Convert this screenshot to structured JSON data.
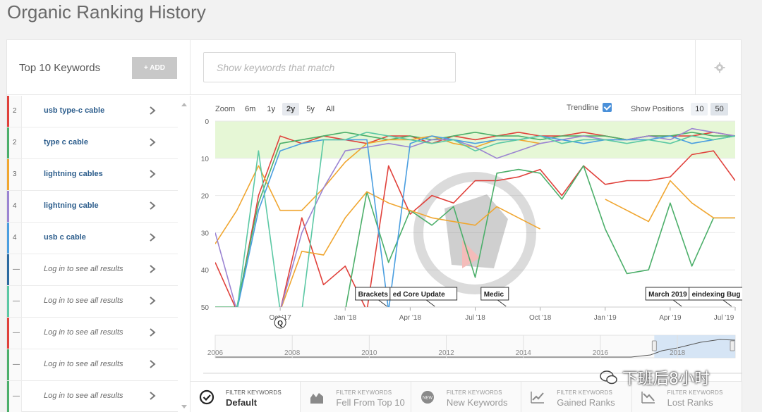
{
  "page": {
    "title": "Organic Ranking History"
  },
  "left_panel": {
    "title": "Top 10 Keywords",
    "add_label": "+ ADD"
  },
  "search": {
    "placeholder": "Show keywords that match"
  },
  "keywords": [
    {
      "rank": "2",
      "label": "usb type-c cable",
      "color": "#e0413b",
      "locked": false
    },
    {
      "rank": "2",
      "label": "type c cable",
      "color": "#4caf6a",
      "locked": false
    },
    {
      "rank": "3",
      "label": "lightning cables",
      "color": "#f0a630",
      "locked": false
    },
    {
      "rank": "4",
      "label": "lightning cable",
      "color": "#9b84d2",
      "locked": false
    },
    {
      "rank": "4",
      "label": "usb c cable",
      "color": "#4a9ee0",
      "locked": false
    },
    {
      "rank": "—",
      "label": "Log in to see all results",
      "color": "#2b6aa0",
      "locked": true
    },
    {
      "rank": "—",
      "label": "Log in to see all results",
      "color": "#5bc8a4",
      "locked": true
    },
    {
      "rank": "—",
      "label": "Log in to see all results",
      "color": "#e0413b",
      "locked": true
    },
    {
      "rank": "—",
      "label": "Log in to see all results",
      "color": "#4caf6a",
      "locked": true
    },
    {
      "rank": "—",
      "label": "Log in to see all results",
      "color": "#4caf6a",
      "locked": true
    }
  ],
  "chart_controls": {
    "zoom_label": "Zoom",
    "zoom_options": [
      "6m",
      "1y",
      "2y",
      "5y",
      "All"
    ],
    "zoom_active": "2y",
    "trendline_label": "Trendline",
    "trendline_checked": true,
    "positions_label": "Show Positions",
    "positions_options": [
      "10",
      "50"
    ],
    "positions_active": "50"
  },
  "chart_data": {
    "type": "line",
    "y_ticks": [
      "0",
      "10",
      "20",
      "30",
      "40",
      "50"
    ],
    "ylim": [
      0,
      50
    ],
    "y_reversed": true,
    "x_ticks": [
      "Oct '17",
      "Jan '18",
      "Apr '18",
      "Jul '18",
      "Oct '18",
      "Jan '19",
      "Apr '19",
      "Jul '19"
    ],
    "x_range": [
      0,
      24
    ],
    "top10_band_color": "#e6f7d6",
    "annotations": [
      {
        "label": "Brackets",
        "x": 6.6
      },
      {
        "label": "ed Core Update",
        "x": 8.2
      },
      {
        "label": "Medic",
        "x": 12.4
      },
      {
        "label": "March 2019",
        "x": 20.0
      },
      {
        "label": "eindexing Bug",
        "x": 22.0
      }
    ],
    "marker_label": "Q",
    "series": [
      {
        "color": "#e0413b",
        "x": [
          0,
          1,
          2,
          3,
          4,
          5,
          6,
          7,
          8,
          9,
          10,
          11,
          12,
          13,
          14,
          15,
          16,
          17,
          18,
          19,
          20,
          21,
          22,
          23,
          24
        ],
        "y": [
          38,
          51,
          20,
          4,
          6,
          4,
          5,
          6,
          4,
          4,
          6,
          4,
          5,
          4,
          3,
          4,
          4,
          3,
          4,
          5,
          4,
          4,
          4,
          3,
          4
        ]
      },
      {
        "color": "#e0413b",
        "x": [
          3,
          4,
          5,
          6,
          7,
          8,
          9,
          10,
          11,
          12,
          13,
          14,
          15,
          16,
          17,
          18,
          19,
          20,
          21,
          22,
          23,
          24
        ],
        "y": [
          51,
          26,
          44,
          39,
          51,
          12,
          25,
          20,
          22,
          16,
          16,
          15,
          13,
          20,
          12,
          17,
          16,
          16,
          15,
          9,
          8,
          16
        ]
      },
      {
        "color": "#4caf6a",
        "x": [
          0,
          1,
          2,
          3,
          4,
          5,
          6,
          7,
          8,
          9,
          10,
          11,
          12,
          13,
          14,
          15,
          16,
          17,
          18,
          19,
          20,
          21,
          22,
          23,
          24
        ],
        "y": [
          50,
          50,
          22,
          6,
          5,
          4,
          3,
          4,
          5,
          4,
          5,
          4,
          3,
          4,
          4,
          5,
          4,
          4,
          4,
          5,
          4,
          4,
          3,
          4,
          4
        ]
      },
      {
        "color": "#4caf6a",
        "x": [
          6,
          7,
          8,
          9,
          10,
          11,
          12,
          13,
          14,
          15,
          16,
          17,
          18,
          19,
          20,
          21,
          22,
          23,
          24
        ],
        "y": [
          51,
          19,
          38,
          24,
          28,
          23,
          42,
          14,
          13,
          14,
          21,
          12,
          29,
          41,
          40,
          22,
          39,
          26,
          26
        ]
      },
      {
        "color": "#f0a630",
        "x": [
          0,
          1,
          2,
          3,
          4,
          5,
          6,
          7,
          8,
          9,
          10,
          11,
          12,
          13,
          14,
          15
        ],
        "y": [
          33,
          24,
          12,
          24,
          24,
          18,
          11,
          6,
          5,
          5,
          4,
          6,
          7,
          5,
          5,
          6
        ]
      },
      {
        "color": "#f0a630",
        "x": [
          3,
          4,
          5,
          6,
          7,
          8,
          9,
          10,
          11,
          12,
          13,
          14,
          15
        ],
        "y": [
          51,
          35,
          36,
          26,
          19,
          22,
          24,
          26,
          27,
          28,
          23,
          26,
          29
        ]
      },
      {
        "color": "#f0a630",
        "x": [
          18,
          19,
          20,
          21,
          22,
          23,
          24
        ],
        "y": [
          21,
          24,
          27,
          16,
          22,
          26,
          26
        ]
      },
      {
        "color": "#9b84d2",
        "x": [
          0,
          1,
          2,
          3,
          4,
          5,
          6,
          7,
          8,
          9,
          10,
          11,
          12,
          13,
          14,
          15,
          16,
          17,
          18,
          19,
          20,
          21,
          22,
          23,
          24
        ],
        "y": [
          30,
          51,
          51,
          51,
          30,
          18,
          8,
          7,
          6,
          7,
          5,
          5,
          7,
          10,
          8,
          6,
          5,
          4,
          5,
          5,
          4,
          5,
          2,
          3,
          4
        ]
      },
      {
        "color": "#4a9ee0",
        "x": [
          0,
          1,
          2,
          3,
          4,
          5,
          6,
          7,
          8,
          9,
          10,
          11,
          12,
          13,
          14,
          15,
          16,
          17,
          18,
          19,
          20,
          21,
          22,
          23,
          24
        ],
        "y": [
          51,
          51,
          24,
          8,
          6,
          5,
          5,
          5,
          51,
          6,
          4,
          5,
          6,
          5,
          5,
          4,
          5,
          6,
          5,
          5,
          5,
          4,
          6,
          5,
          4
        ]
      },
      {
        "color": "#5bc8a4",
        "x": [
          0,
          1,
          2,
          3,
          4,
          5,
          6,
          7,
          8,
          9,
          10,
          11,
          12,
          13,
          14,
          15,
          16,
          17,
          18,
          19,
          20,
          21,
          22,
          23,
          24
        ],
        "y": [
          51,
          51,
          8,
          51,
          51,
          5,
          5,
          3,
          4,
          5,
          6,
          5,
          8,
          6,
          5,
          4,
          6,
          5,
          5,
          6,
          5,
          6,
          4,
          5,
          4
        ]
      }
    ]
  },
  "navigator": {
    "years": [
      "2006",
      "2008",
      "2010",
      "2012",
      "2014",
      "2016",
      "2018"
    ],
    "year_range": [
      2006,
      2019.5
    ],
    "selection_range": [
      2017.4,
      2019.5
    ]
  },
  "filters": [
    {
      "small": "FILTER KEYWORDS",
      "big": "Default",
      "icon": "check-circle-icon",
      "active": true
    },
    {
      "small": "FILTER KEYWORDS",
      "big": "Fell From Top 10",
      "icon": "area-chart-icon",
      "active": false
    },
    {
      "small": "FILTER KEYWORDS",
      "big": "New Keywords",
      "icon": "new-badge-icon",
      "active": false
    },
    {
      "small": "FILTER KEYWORDS",
      "big": "Gained Ranks",
      "icon": "line-chart-up-icon",
      "active": false
    },
    {
      "small": "FILTER KEYWORDS",
      "big": "Lost Ranks",
      "icon": "line-chart-down-icon",
      "active": false
    }
  ],
  "watermark": {
    "text": "下班后8小时"
  }
}
